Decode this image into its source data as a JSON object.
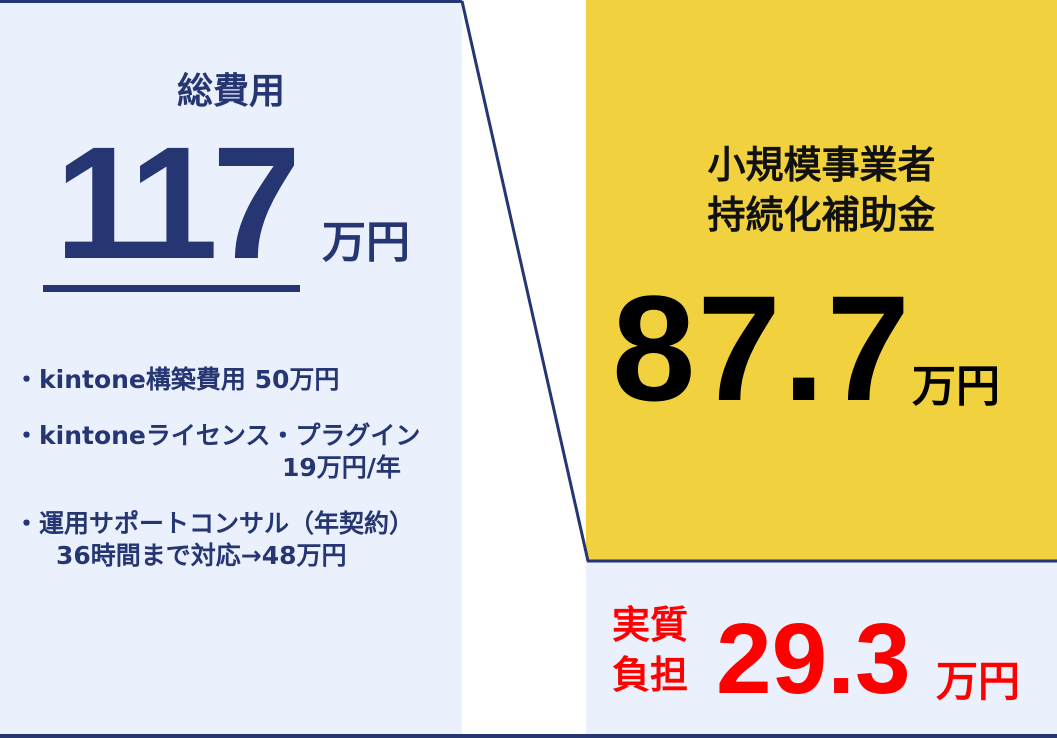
{
  "colors": {
    "navy": "#253672",
    "light_blue": "#eaf1fd",
    "yellow": "#f1d23e",
    "red": "#ff0000"
  },
  "total": {
    "title": "総費用",
    "value": "117",
    "unit": "万円",
    "items": [
      {
        "line1": "・kintone構築費用 50万円"
      },
      {
        "line1": "・kintoneライセンス・プラグイン",
        "line2": "19万円/年"
      },
      {
        "line1": "・運用サポートコンサル（年契約）",
        "line2": "36時間まで対応→48万円"
      }
    ]
  },
  "subsidy": {
    "title_line1": "小規模事業者",
    "title_line2": "持続化補助金",
    "value": "87.7",
    "unit": "万円"
  },
  "net": {
    "label_line1": "実質",
    "label_line2": "負担",
    "value": "29.3",
    "unit": "万円"
  }
}
